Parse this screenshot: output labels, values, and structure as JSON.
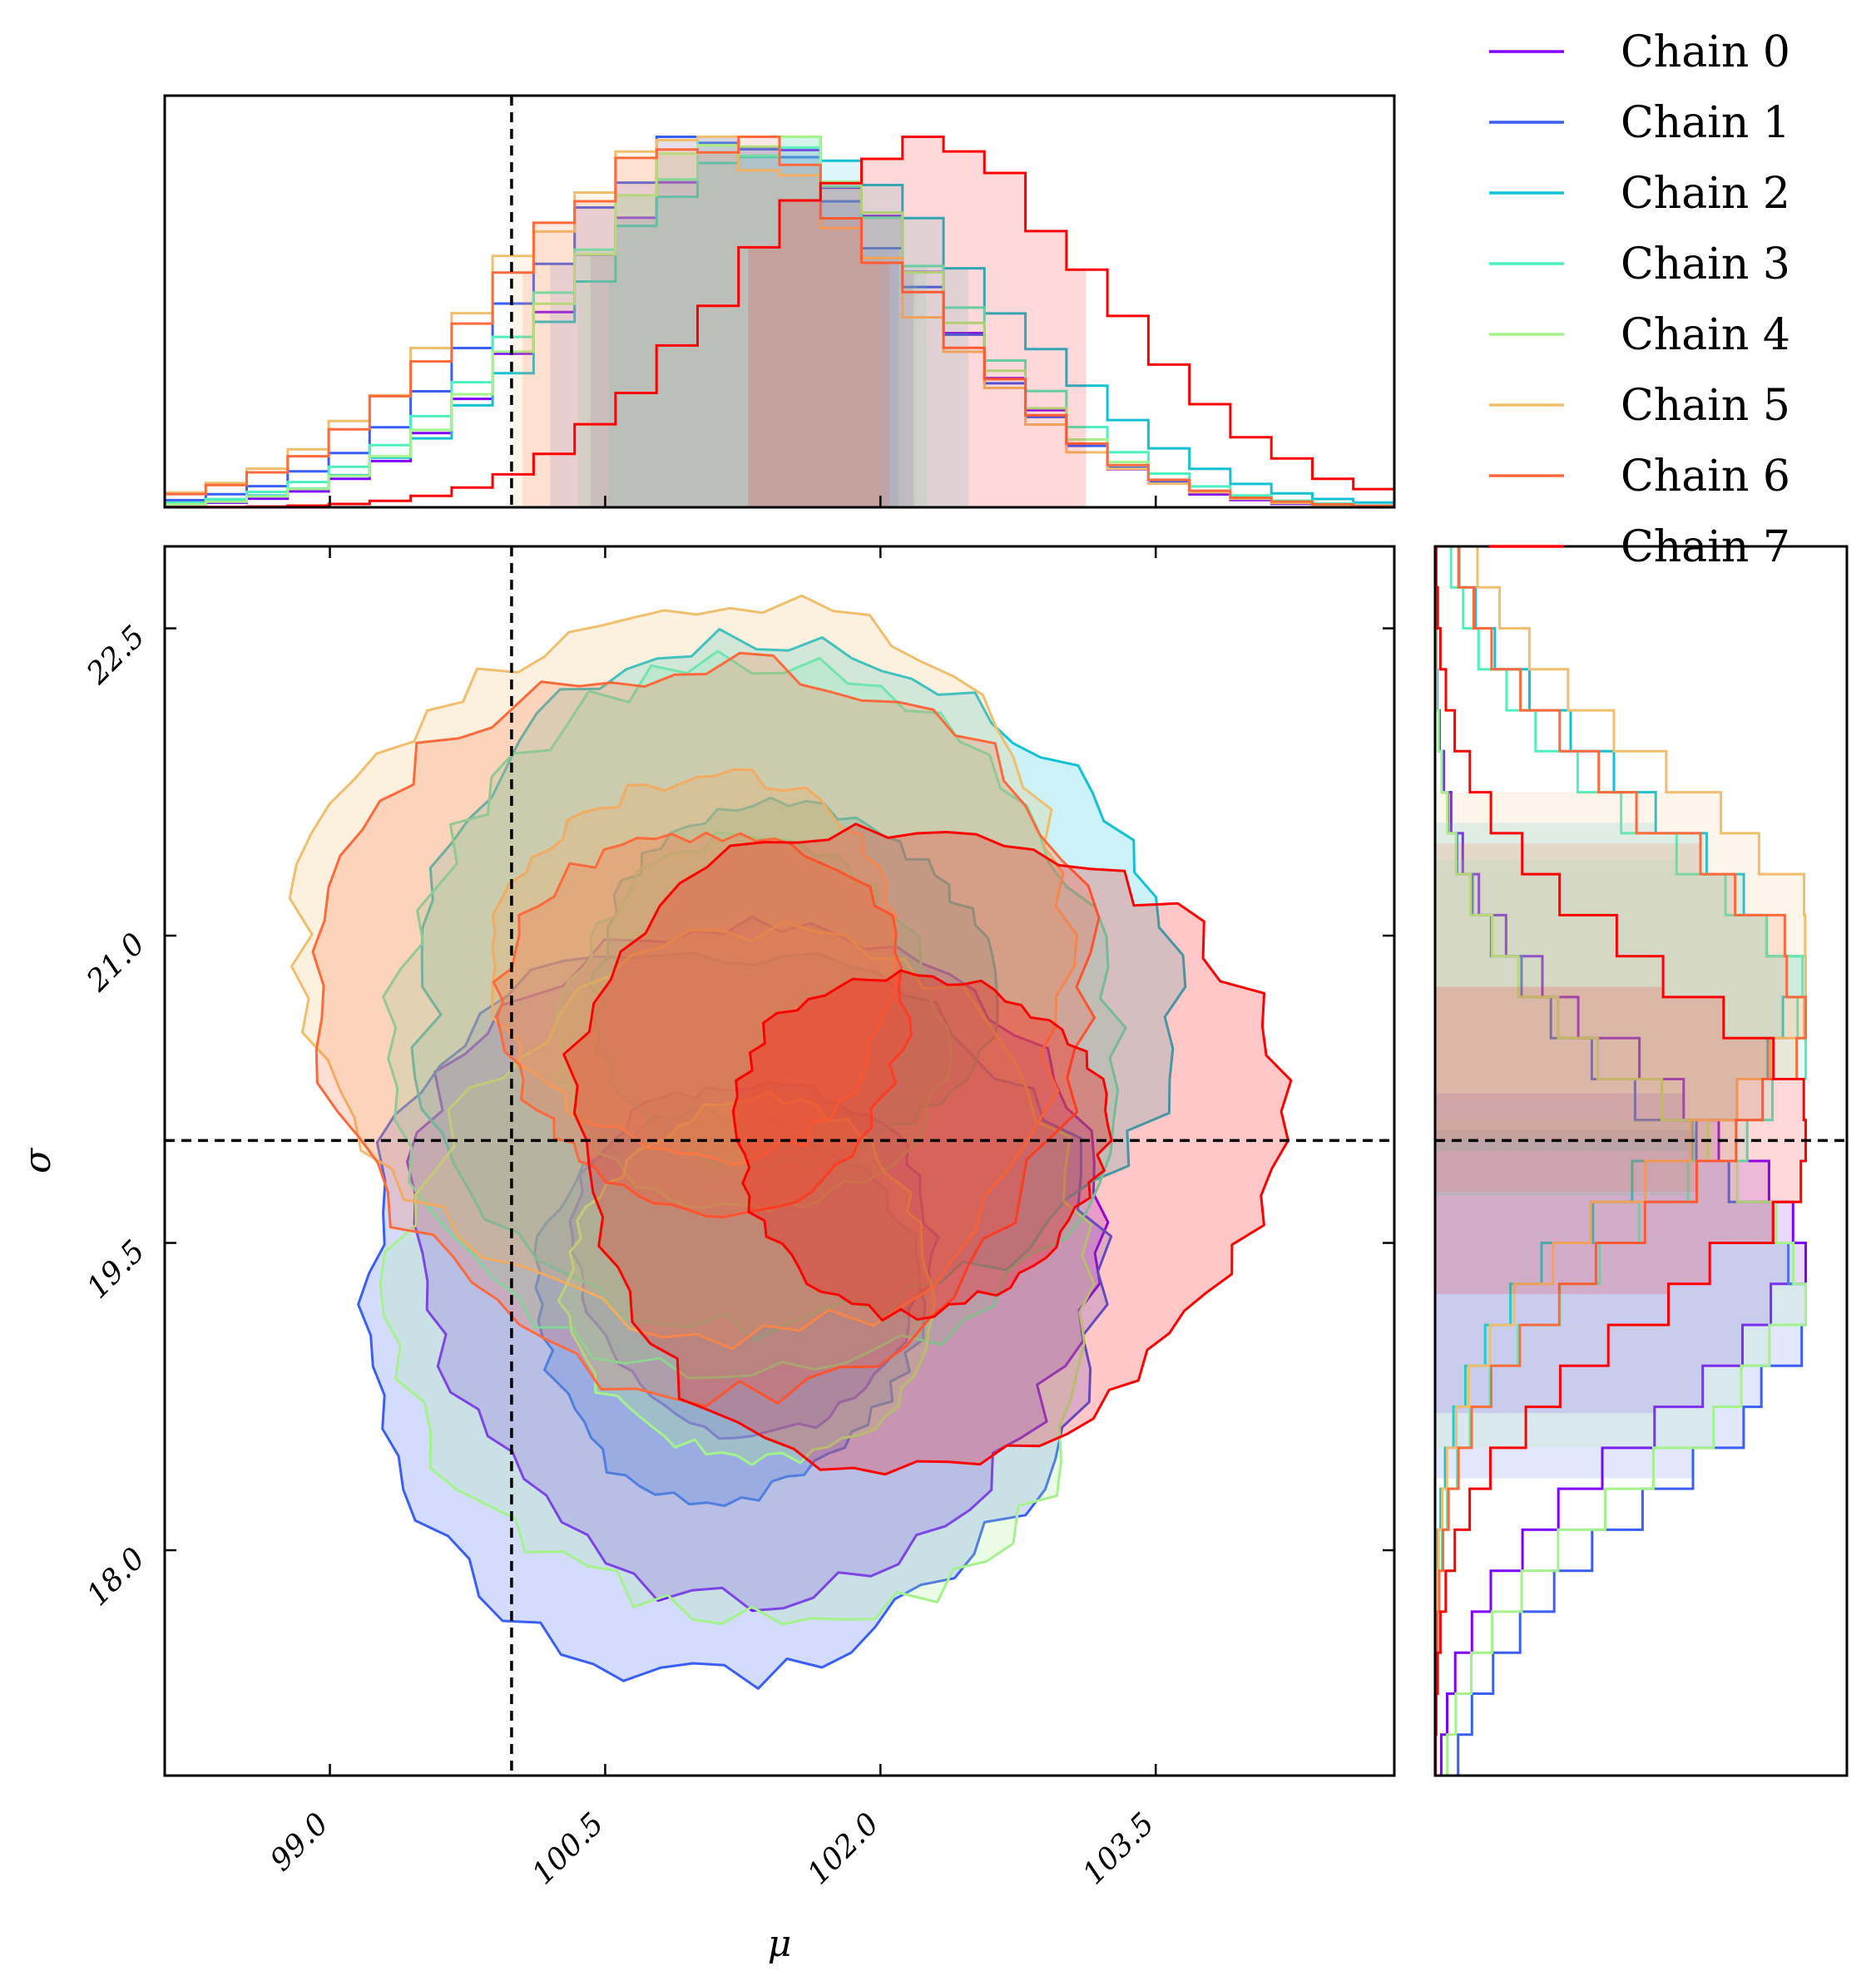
{
  "chart_data": {
    "type": "corner",
    "parameters": [
      "μ",
      "σ"
    ],
    "xlabel": "μ",
    "ylabel": "σ",
    "xlim": [
      98.1,
      104.8
    ],
    "ylim": [
      16.9,
      22.9
    ],
    "xticks": [
      "99.0",
      "100.5",
      "102.0",
      "103.5"
    ],
    "yticks": [
      "18.0",
      "19.5",
      "21.0",
      "22.5"
    ],
    "truth": {
      "mu": 99.99,
      "sigma": 20.0
    },
    "legend": {
      "placement": "top-right",
      "entries": [
        "Chain 0",
        "Chain 1",
        "Chain 2",
        "Chain 3",
        "Chain 4",
        "Chain 5",
        "Chain 6",
        "Chain 7"
      ]
    },
    "series": [
      {
        "name": "Chain 0",
        "color": "#8000ff",
        "mu_center": 101.3,
        "sigma_center": 19.45,
        "mu_sd": 0.88,
        "sigma_sd": 0.78
      },
      {
        "name": "Chain 1",
        "color": "#3a5ff5",
        "mu_center": 101.15,
        "sigma_center": 19.2,
        "mu_sd": 0.95,
        "sigma_sd": 0.85
      },
      {
        "name": "Chain 2",
        "color": "#12c2d4",
        "mu_center": 101.5,
        "sigma_center": 20.75,
        "mu_sd": 0.98,
        "sigma_sd": 0.8
      },
      {
        "name": "Chain 3",
        "color": "#4ff0c0",
        "mu_center": 101.3,
        "sigma_center": 20.55,
        "mu_sd": 0.95,
        "sigma_sd": 0.82
      },
      {
        "name": "Chain 4",
        "color": "#a4f28c",
        "mu_center": 101.3,
        "sigma_center": 19.3,
        "mu_sd": 0.9,
        "sigma_sd": 0.8
      },
      {
        "name": "Chain 5",
        "color": "#f0be6c",
        "mu_center": 101.0,
        "sigma_center": 20.85,
        "mu_sd": 1.0,
        "sigma_sd": 0.85
      },
      {
        "name": "Chain 6",
        "color": "#ff6a3c",
        "mu_center": 101.05,
        "sigma_center": 20.6,
        "mu_sd": 1.0,
        "sigma_sd": 0.85
      },
      {
        "name": "Chain 7",
        "color": "#ff0000",
        "mu_center": 102.2,
        "sigma_center": 20.0,
        "mu_sd": 0.92,
        "sigma_sd": 0.75
      }
    ]
  }
}
